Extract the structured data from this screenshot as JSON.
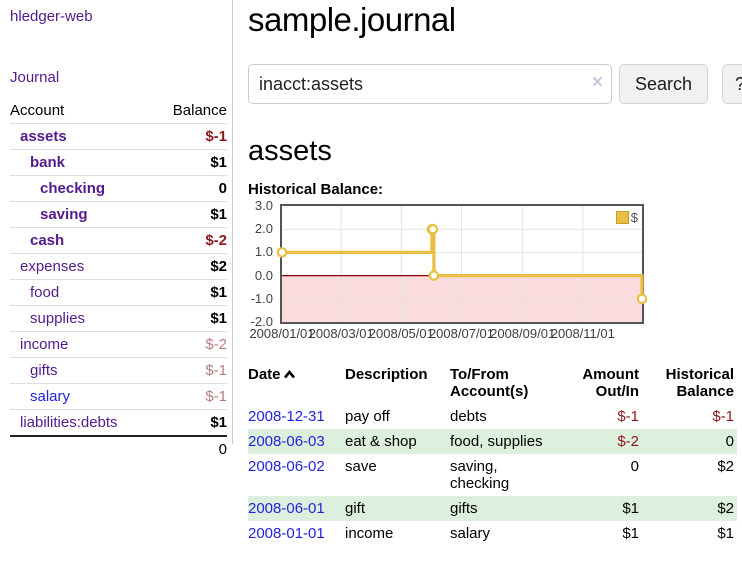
{
  "sidebar": {
    "brand": "hledger-web",
    "journal_label": "Journal",
    "accounts": {
      "header_account": "Account",
      "header_balance": "Balance",
      "rows": [
        {
          "name": "assets",
          "balance": "$-1",
          "name_class": "lvl1 sel",
          "bal_class": "neg"
        },
        {
          "name": "bank",
          "balance": "$1",
          "name_class": "lvl2 sel",
          "bal_class": ""
        },
        {
          "name": "checking",
          "balance": "0",
          "name_class": "lvl3 sel",
          "bal_class": ""
        },
        {
          "name": "saving",
          "balance": "$1",
          "name_class": "lvl3 sel",
          "bal_class": ""
        },
        {
          "name": "cash",
          "balance": "$-2",
          "name_class": "lvl2 sel",
          "bal_class": "neg"
        },
        {
          "name": "expenses",
          "balance": "$2",
          "name_class": "lvl1",
          "bal_class": ""
        },
        {
          "name": "food",
          "balance": "$1",
          "name_class": "lvl2",
          "bal_class": ""
        },
        {
          "name": "supplies",
          "balance": "$1",
          "name_class": "lvl2",
          "bal_class": ""
        },
        {
          "name": "income",
          "balance": "$-2",
          "name_class": "lvl1",
          "bal_class": "negmuted"
        },
        {
          "name": "gifts",
          "balance": "$-1",
          "name_class": "lvl2",
          "bal_class": "negmuted"
        },
        {
          "name": "salary",
          "balance": "$-1",
          "name_class": "lvl2 blue",
          "bal_class": "negmuted"
        },
        {
          "name": "liabilities:debts",
          "balance": "$1",
          "name_class": "lvl1",
          "bal_class": ""
        }
      ],
      "total": "0"
    }
  },
  "main": {
    "title": "sample.journal",
    "search": {
      "value": "inacct:assets",
      "clear_icon": "×",
      "button_label": "Search",
      "help_label": "?"
    },
    "account_heading": "assets",
    "chart_title": "Historical Balance:"
  },
  "chart_data": {
    "type": "line",
    "style": "step",
    "title": "Historical Balance",
    "x_range": [
      "2008-01-01",
      "2008-12-31"
    ],
    "ylim": [
      -2,
      3
    ],
    "y_ticks": [
      3.0,
      2.0,
      1.0,
      0.0,
      -1.0,
      -2.0
    ],
    "x_ticks": [
      "2008/01/01",
      "2008/03/01",
      "2008/05/01",
      "2008/07/01",
      "2008/09/01",
      "2008/11/01"
    ],
    "grid": true,
    "grid_color": "#e3e3e3",
    "negative_fill": "#fbdcdc",
    "zero_line_color": "#8b0000",
    "legend_position": "top-right",
    "series": [
      {
        "name": "$",
        "color": "#e9c044",
        "points": [
          [
            "2008-01-01",
            1
          ],
          [
            "2008-06-01",
            2
          ],
          [
            "2008-06-02",
            2
          ],
          [
            "2008-06-03",
            0
          ],
          [
            "2008-12-31",
            -1
          ]
        ]
      }
    ]
  },
  "transactions": {
    "headers": {
      "date": "Date",
      "description": "Description",
      "accounts": "To/From Account(s)",
      "amount": "Amount Out/In",
      "balance": "Historical Balance"
    },
    "rows": [
      {
        "date": "2008-12-31",
        "description": "pay off",
        "accounts": "debts",
        "amount": "$-1",
        "amount_class": "neg",
        "balance": "$-1",
        "balance_class": "neg"
      },
      {
        "date": "2008-06-03",
        "description": "eat & shop",
        "accounts": "food, supplies",
        "amount": "$-2",
        "amount_class": "neg",
        "balance": "0",
        "balance_class": ""
      },
      {
        "date": "2008-06-02",
        "description": "save",
        "accounts": "saving, checking",
        "amount": "0",
        "amount_class": "",
        "balance": "$2",
        "balance_class": ""
      },
      {
        "date": "2008-06-01",
        "description": "gift",
        "accounts": "gifts",
        "amount": "$1",
        "amount_class": "",
        "balance": "$2",
        "balance_class": ""
      },
      {
        "date": "2008-01-01",
        "description": "income",
        "accounts": "salary",
        "amount": "$1",
        "amount_class": "",
        "balance": "$1",
        "balance_class": ""
      }
    ]
  }
}
